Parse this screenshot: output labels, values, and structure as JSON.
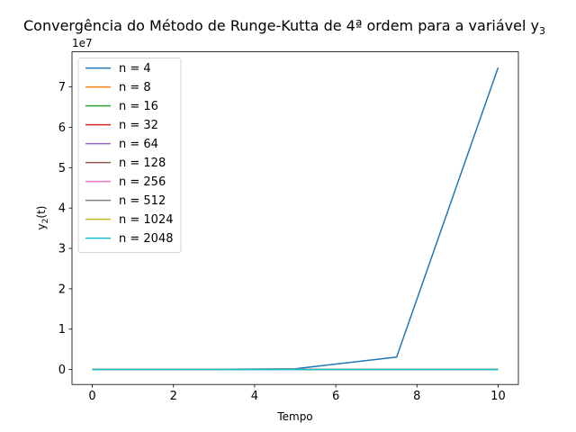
{
  "chart_data": {
    "type": "line",
    "title": "Convergência do Método de Runge-Kutta de 4ª ordem para a variável y",
    "title_sub": "3",
    "xlabel": "Tempo",
    "ylabel": "y",
    "ylabel_sub": "2",
    "ylabel_suffix": "(t)",
    "y_multiplier_label": "1e7",
    "y_multiplier": 10000000,
    "xlim": [
      -0.5,
      10.5
    ],
    "ylim": [
      -0.37,
      7.87
    ],
    "xticks": [
      0,
      2,
      4,
      6,
      8,
      10
    ],
    "yticks": [
      0,
      1,
      2,
      3,
      4,
      5,
      6,
      7
    ],
    "grid": false,
    "legend_position": "top-left",
    "series": [
      {
        "name": "n = 4",
        "color": "#1f77b4",
        "x": [
          0,
          2.5,
          5,
          7.5,
          10
        ],
        "y": [
          0,
          0.0005,
          0.02,
          0.31,
          7.48
        ]
      },
      {
        "name": "n = 8",
        "color": "#ff7f0e",
        "x": [
          0,
          10
        ],
        "y": [
          0,
          0
        ]
      },
      {
        "name": "n = 16",
        "color": "#2ca02c",
        "x": [
          0,
          10
        ],
        "y": [
          0,
          0
        ]
      },
      {
        "name": "n = 32",
        "color": "#d62728",
        "x": [
          0,
          10
        ],
        "y": [
          0,
          0
        ]
      },
      {
        "name": "n = 64",
        "color": "#9467bd",
        "x": [
          0,
          10
        ],
        "y": [
          0,
          0
        ]
      },
      {
        "name": "n = 128",
        "color": "#8c564b",
        "x": [
          0,
          10
        ],
        "y": [
          0,
          0
        ]
      },
      {
        "name": "n = 256",
        "color": "#e377c2",
        "x": [
          0,
          10
        ],
        "y": [
          0,
          0
        ]
      },
      {
        "name": "n = 512",
        "color": "#7f7f7f",
        "x": [
          0,
          10
        ],
        "y": [
          0,
          0
        ]
      },
      {
        "name": "n = 1024",
        "color": "#bcbd22",
        "x": [
          0,
          10
        ],
        "y": [
          0,
          0
        ]
      },
      {
        "name": "n = 2048",
        "color": "#17becf",
        "x": [
          0,
          10
        ],
        "y": [
          0,
          0
        ]
      }
    ]
  }
}
